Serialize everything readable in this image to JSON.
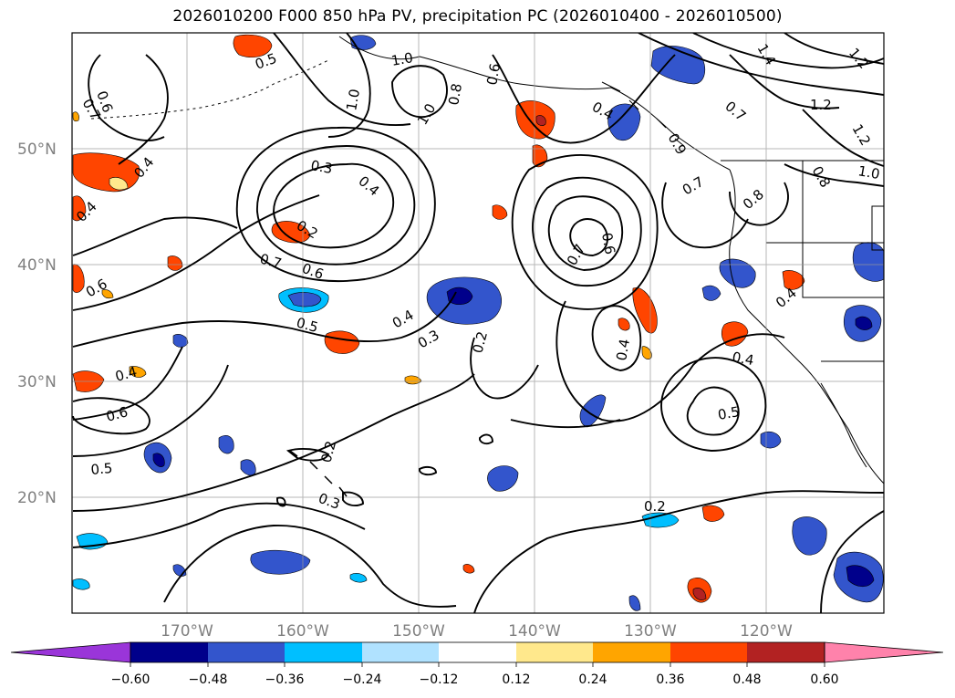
{
  "title": "2026010200 F000 850 hPa PV, precipitation PC (2026010400 - 2026010500)",
  "map": {
    "lat_labels": [
      "50°N",
      "40°N",
      "30°N",
      "20°N"
    ],
    "lon_labels": [
      "170°W",
      "160°W",
      "150°W",
      "140°W",
      "130°W",
      "120°W"
    ],
    "contour_labels": [
      {
        "text": "0.5"
      },
      {
        "text": "0.6"
      },
      {
        "text": "0.7"
      },
      {
        "text": "1.0"
      },
      {
        "text": "1.0"
      },
      {
        "text": "0.8"
      },
      {
        "text": "1.0"
      },
      {
        "text": "0.6"
      },
      {
        "text": "1.4"
      },
      {
        "text": "1.2"
      },
      {
        "text": "1.2"
      },
      {
        "text": "1.2"
      },
      {
        "text": "0.7"
      },
      {
        "text": "0.4"
      },
      {
        "text": "0.9"
      },
      {
        "text": "0.8"
      },
      {
        "text": "1.0"
      },
      {
        "text": "0.3"
      },
      {
        "text": "0.4"
      },
      {
        "text": "0.4"
      },
      {
        "text": "0.2"
      },
      {
        "text": "0.7"
      },
      {
        "text": "0.6"
      },
      {
        "text": "0.7"
      },
      {
        "text": "0.8"
      },
      {
        "text": "0.7"
      },
      {
        "text": "0.6"
      },
      {
        "text": "0.4"
      },
      {
        "text": "0.6"
      },
      {
        "text": "0.5"
      },
      {
        "text": "0.4"
      },
      {
        "text": "0.3"
      },
      {
        "text": "0.2"
      },
      {
        "text": "0.4"
      },
      {
        "text": "0.4"
      },
      {
        "text": "0.4"
      },
      {
        "text": "0.5"
      },
      {
        "text": "0.4"
      },
      {
        "text": "0.6"
      },
      {
        "text": "0.5"
      },
      {
        "text": "0.2"
      },
      {
        "text": "0.3"
      },
      {
        "text": "0.2"
      }
    ]
  },
  "colorbar": {
    "colors": [
      "#9a35d9",
      "#00008b",
      "#3355cc",
      "#00bfff",
      "#b0e2ff",
      "#ffffff",
      "#ffe88c",
      "#ffa500",
      "#ff4500",
      "#b22222",
      "#ff82ab"
    ],
    "ticks": [
      "−0.60",
      "−0.48",
      "−0.36",
      "−0.24",
      "−0.12",
      "0.12",
      "0.24",
      "0.36",
      "0.48",
      "0.60"
    ]
  },
  "palette": {
    "neg_dark": "#00008b",
    "neg_mid": "#3355cc",
    "neg_light": "#00bfff",
    "neg_pale": "#b0e2ff",
    "pos_pale": "#ffe88c",
    "pos_mid": "#ffa500",
    "pos_strong": "#ff4500",
    "pos_dark": "#b22222"
  }
}
